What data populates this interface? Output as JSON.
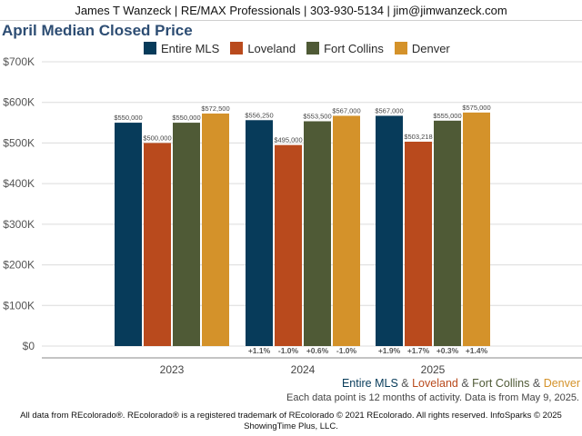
{
  "header": {
    "text": "James T Wanzeck | RE/MAX Professionals | 303-930-5134 | jim@jimwanzeck.com"
  },
  "colors": {
    "entire_mls": "#073b5a",
    "loveland": "#b94a1d",
    "fort_collins": "#4f5a36",
    "denver": "#d4922a",
    "title": "#2d4d73",
    "grid": "#dcdcdc",
    "axis": "#888888"
  },
  "chart_data": {
    "type": "bar",
    "title": "April Median Closed Price",
    "categories": [
      "2023",
      "2024",
      "2025"
    ],
    "ylim": [
      0,
      700000
    ],
    "yticks": [
      "$0",
      "$100K",
      "$200K",
      "$300K",
      "$400K",
      "$500K",
      "$600K",
      "$700K"
    ],
    "ytick_values": [
      0,
      100000,
      200000,
      300000,
      400000,
      500000,
      600000,
      700000
    ],
    "grid": true,
    "legend_position": "top",
    "series": [
      {
        "name": "Entire MLS",
        "color_key": "entire_mls",
        "values": [
          550000,
          556250,
          567000
        ],
        "value_labels": [
          "$550,000",
          "$556,250",
          "$567,000"
        ],
        "changes": [
          "",
          "+1.1%",
          "+1.9%"
        ]
      },
      {
        "name": "Loveland",
        "color_key": "loveland",
        "values": [
          500000,
          495000,
          503218
        ],
        "value_labels": [
          "$500,000",
          "$495,000",
          "$503,218"
        ],
        "changes": [
          "",
          "-1.0%",
          "+1.7%"
        ]
      },
      {
        "name": "Fort Collins",
        "color_key": "fort_collins",
        "values": [
          550000,
          553500,
          555000
        ],
        "value_labels": [
          "$550,000",
          "$553,500",
          "$555,000"
        ],
        "changes": [
          "",
          "+0.6%",
          "+0.3%"
        ]
      },
      {
        "name": "Denver",
        "color_key": "denver",
        "values": [
          572500,
          567000,
          575000
        ],
        "value_labels": [
          "$572,500",
          "$567,000",
          "$575,000"
        ],
        "changes": [
          "",
          "-1.0%",
          "+1.4%"
        ]
      }
    ]
  },
  "colorline": {
    "entire_mls": "Entire MLS",
    "loveland": "Loveland",
    "fort_collins": "Fort Collins",
    "denver": "Denver",
    "amp": "&"
  },
  "note": "Each data point is 12 months of activity. Data is from May 9, 2025.",
  "footer": {
    "line1": "All data from REcolorado®. REcolorado® is a registered trademark of REcolorado © 2021 REcolorado. All rights reserved. InfoSparks © 2025",
    "line2": "ShowingTime Plus, LLC."
  }
}
